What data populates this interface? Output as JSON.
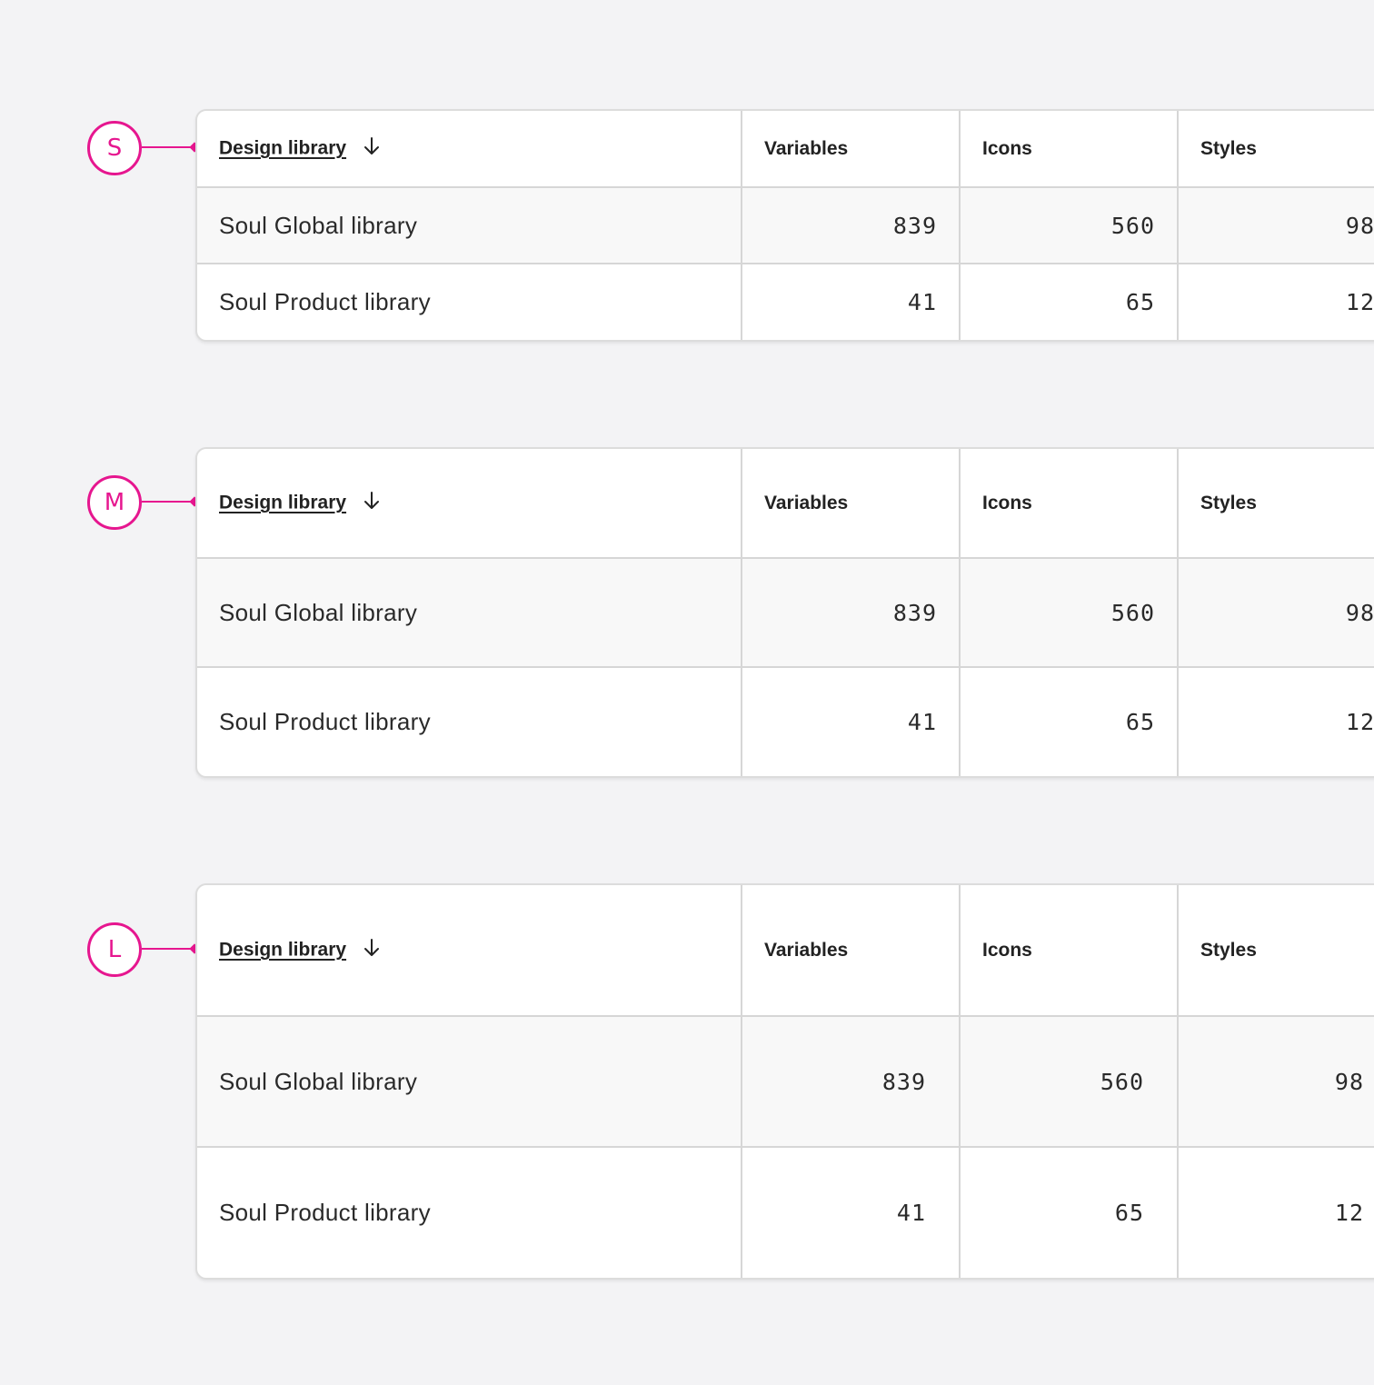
{
  "columns": {
    "design_library": "Design library",
    "variables": "Variables",
    "icons": "Icons",
    "styles": "Styles"
  },
  "sizes": [
    {
      "label": "S"
    },
    {
      "label": "M"
    },
    {
      "label": "L"
    }
  ],
  "rows": [
    {
      "name": "Soul Global library",
      "variables": "839",
      "icons": "560",
      "styles": "98"
    },
    {
      "name": "Soul Product library",
      "variables": "41",
      "icons": "65",
      "styles": "12"
    }
  ],
  "colors": {
    "accent": "#e6168f",
    "background": "#f3f3f5",
    "border": "#d6d6d6"
  },
  "icons": {
    "sort": "arrow-down-icon"
  }
}
